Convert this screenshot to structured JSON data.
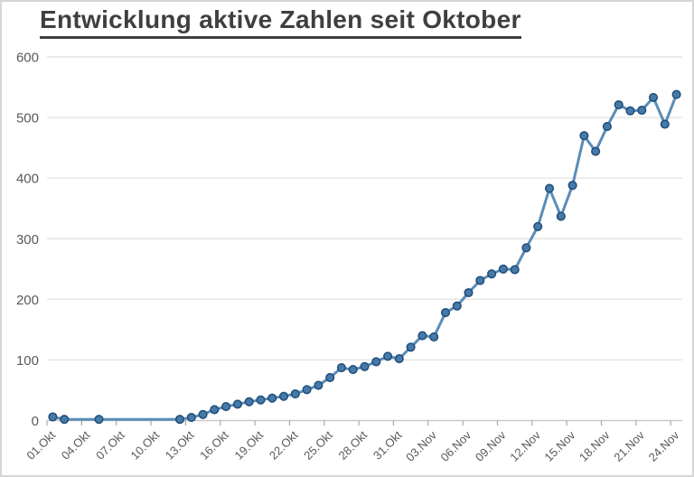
{
  "chart_data": {
    "type": "line",
    "title": "Entwicklung aktive Zahlen seit Oktober",
    "xlabel": "",
    "ylabel": "",
    "ylim": [
      0,
      600
    ],
    "y_ticks": [
      0,
      100,
      200,
      300,
      400,
      500,
      600
    ],
    "grid": "horizontal",
    "legend": "none",
    "x_axis_span_days": 55,
    "x_tick_labels": [
      "01.Okt",
      "04.Okt",
      "07.Okt",
      "10.Okt",
      "13.Okt",
      "16.Okt",
      "19.Okt",
      "22.Okt",
      "25.Okt",
      "28.Okt",
      "31.Okt",
      "03.Nov",
      "06.Nov",
      "09.Nov",
      "12.Nov",
      "15.Nov",
      "18.Nov",
      "21.Nov",
      "24.Nov"
    ],
    "x_tick_day_positions": [
      1,
      4,
      7,
      10,
      13,
      16,
      19,
      22,
      25,
      28,
      31,
      34,
      37,
      40,
      43,
      46,
      49,
      52,
      55
    ],
    "points": [
      {
        "day": 1,
        "label": "01.Okt",
        "value": 6
      },
      {
        "day": 2,
        "label": "02.Okt",
        "value": 2
      },
      {
        "day": 5,
        "label": "05.Okt",
        "value": 2
      },
      {
        "day": 12,
        "label": "12.Okt",
        "value": 2
      },
      {
        "day": 13,
        "label": "13.Okt",
        "value": 5
      },
      {
        "day": 14,
        "label": "14.Okt",
        "value": 10
      },
      {
        "day": 15,
        "label": "15.Okt",
        "value": 18
      },
      {
        "day": 16,
        "label": "16.Okt",
        "value": 23
      },
      {
        "day": 17,
        "label": "17.Okt",
        "value": 27
      },
      {
        "day": 18,
        "label": "18.Okt",
        "value": 31
      },
      {
        "day": 19,
        "label": "19.Okt",
        "value": 34
      },
      {
        "day": 20,
        "label": "20.Okt",
        "value": 37
      },
      {
        "day": 21,
        "label": "21.Okt",
        "value": 40
      },
      {
        "day": 22,
        "label": "22.Okt",
        "value": 44
      },
      {
        "day": 23,
        "label": "23.Okt",
        "value": 51
      },
      {
        "day": 24,
        "label": "24.Okt",
        "value": 58
      },
      {
        "day": 25,
        "label": "25.Okt",
        "value": 71
      },
      {
        "day": 26,
        "label": "26.Okt",
        "value": 87
      },
      {
        "day": 27,
        "label": "27.Okt",
        "value": 84
      },
      {
        "day": 28,
        "label": "28.Okt",
        "value": 89
      },
      {
        "day": 29,
        "label": "29.Okt",
        "value": 97
      },
      {
        "day": 30,
        "label": "30.Okt",
        "value": 106
      },
      {
        "day": 31,
        "label": "31.Okt",
        "value": 102
      },
      {
        "day": 32,
        "label": "01.Nov",
        "value": 121
      },
      {
        "day": 33,
        "label": "02.Nov",
        "value": 140
      },
      {
        "day": 34,
        "label": "03.Nov",
        "value": 138
      },
      {
        "day": 35,
        "label": "04.Nov",
        "value": 178
      },
      {
        "day": 36,
        "label": "05.Nov",
        "value": 189
      },
      {
        "day": 37,
        "label": "06.Nov",
        "value": 211
      },
      {
        "day": 38,
        "label": "07.Nov",
        "value": 231
      },
      {
        "day": 39,
        "label": "08.Nov",
        "value": 242
      },
      {
        "day": 40,
        "label": "09.Nov",
        "value": 250
      },
      {
        "day": 41,
        "label": "10.Nov",
        "value": 249
      },
      {
        "day": 42,
        "label": "11.Nov",
        "value": 285
      },
      {
        "day": 43,
        "label": "12.Nov",
        "value": 320
      },
      {
        "day": 44,
        "label": "13.Nov",
        "value": 383
      },
      {
        "day": 45,
        "label": "14.Nov",
        "value": 337
      },
      {
        "day": 46,
        "label": "15.Nov",
        "value": 388
      },
      {
        "day": 47,
        "label": "16.Nov",
        "value": 470
      },
      {
        "day": 48,
        "label": "17.Nov",
        "value": 444
      },
      {
        "day": 49,
        "label": "18.Nov",
        "value": 485
      },
      {
        "day": 50,
        "label": "19.Nov",
        "value": 521
      },
      {
        "day": 51,
        "label": "20.Nov",
        "value": 511
      },
      {
        "day": 52,
        "label": "21.Nov",
        "value": 512
      },
      {
        "day": 53,
        "label": "22.Nov",
        "value": 533
      },
      {
        "day": 54,
        "label": "23.Nov",
        "value": 489
      },
      {
        "day": 55,
        "label": "24.Nov",
        "value": 538
      }
    ],
    "colors": {
      "line": "#5b8db8",
      "marker_fill": "#4779a9",
      "marker_border": "#1f4e79",
      "grid": "#e4e4e4",
      "axis_line": "#c9c9c9",
      "tick": "#a6a6a6",
      "axis_text": "#595959",
      "title": "#3f3f3f",
      "chart_border": "#d6d6d6",
      "background": "#ffffff"
    }
  }
}
